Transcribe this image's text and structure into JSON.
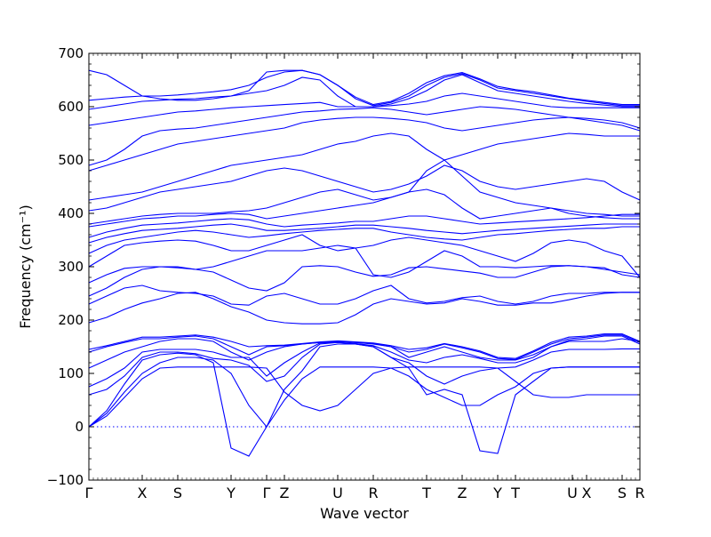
{
  "chart_data": {
    "type": "line",
    "title": "",
    "xlabel": "Wave vector",
    "ylabel": "Frequency (cm⁻¹)",
    "ylim": [
      -100,
      700
    ],
    "yticks": [
      -100,
      0,
      100,
      200,
      300,
      400,
      500,
      600,
      700
    ],
    "xlim": [
      0,
      31
    ],
    "xticks": [
      {
        "label": "Γ",
        "x": 0
      },
      {
        "label": "X",
        "x": 3
      },
      {
        "label": "S",
        "x": 5
      },
      {
        "label": "Y",
        "x": 8
      },
      {
        "label": "Γ",
        "x": 10
      },
      {
        "label": "Z",
        "x": 11
      },
      {
        "label": "U",
        "x": 14
      },
      {
        "label": "R",
        "x": 16
      },
      {
        "label": "T",
        "x": 19
      },
      {
        "label": "Z",
        "x": 21
      },
      {
        "label": "Y",
        "x": 23
      },
      {
        "label": "T",
        "x": 24
      },
      {
        "label": "U",
        "x": 27.2
      },
      {
        "label": "X",
        "x": 28
      },
      {
        "label": "S",
        "x": 30
      },
      {
        "label": "R",
        "x": 31
      }
    ],
    "zero_line": 0,
    "line_color": "#0000ff",
    "zero_line_color": "#0000ff",
    "grid": false,
    "series_note": "phonon branches",
    "bands": [
      [
        0,
        20,
        55,
        90,
        110,
        112,
        112,
        112,
        112,
        112,
        110,
        65,
        40,
        30,
        40,
        70,
        100,
        110,
        112,
        112,
        112,
        112,
        112,
        110,
        85,
        60,
        55,
        55,
        60,
        60,
        60,
        60
      ],
      [
        0,
        25,
        65,
        100,
        120,
        130,
        130,
        125,
        100,
        40,
        0,
        50,
        90,
        112,
        112,
        112,
        112,
        110,
        95,
        70,
        55,
        40,
        40,
        60,
        75,
        100,
        110,
        112,
        112,
        112,
        112,
        112
      ],
      [
        0,
        30,
        80,
        125,
        135,
        138,
        135,
        120,
        -40,
        -55,
        0,
        70,
        105,
        150,
        155,
        155,
        150,
        130,
        110,
        60,
        70,
        60,
        -45,
        -50,
        60,
        85,
        110,
        112,
        112,
        112,
        112,
        112
      ],
      [
        60,
        70,
        95,
        130,
        140,
        140,
        137,
        128,
        125,
        115,
        85,
        95,
        130,
        155,
        158,
        155,
        150,
        130,
        120,
        95,
        80,
        95,
        105,
        110,
        112,
        125,
        140,
        145,
        145,
        145,
        146,
        146
      ],
      [
        75,
        90,
        110,
        140,
        145,
        145,
        145,
        140,
        130,
        130,
        95,
        120,
        140,
        157,
        158,
        156,
        152,
        140,
        125,
        120,
        130,
        135,
        128,
        120,
        120,
        130,
        150,
        160,
        160,
        160,
        165,
        160
      ],
      [
        110,
        125,
        140,
        150,
        160,
        165,
        165,
        160,
        140,
        125,
        140,
        150,
        155,
        158,
        160,
        158,
        155,
        150,
        130,
        140,
        150,
        140,
        130,
        125,
        125,
        135,
        150,
        162,
        165,
        170,
        170,
        155
      ],
      [
        140,
        150,
        158,
        165,
        165,
        168,
        170,
        165,
        150,
        135,
        150,
        152,
        155,
        158,
        160,
        158,
        156,
        150,
        140,
        145,
        155,
        148,
        140,
        128,
        126,
        140,
        155,
        165,
        168,
        172,
        172,
        158
      ],
      [
        145,
        152,
        160,
        168,
        168,
        170,
        172,
        168,
        160,
        150,
        152,
        153,
        156,
        159,
        161,
        159,
        157,
        152,
        145,
        148,
        156,
        150,
        142,
        130,
        128,
        142,
        158,
        168,
        170,
        174,
        174,
        160
      ],
      [
        195,
        205,
        220,
        232,
        240,
        250,
        252,
        240,
        225,
        215,
        200,
        195,
        193,
        193,
        195,
        210,
        230,
        240,
        235,
        230,
        232,
        240,
        235,
        228,
        228,
        232,
        232,
        238,
        245,
        250,
        252,
        252
      ],
      [
        230,
        245,
        260,
        265,
        255,
        252,
        250,
        245,
        230,
        228,
        245,
        250,
        240,
        230,
        230,
        240,
        255,
        265,
        240,
        232,
        235,
        242,
        245,
        235,
        230,
        235,
        245,
        250,
        250,
        252,
        252,
        252
      ],
      [
        245,
        260,
        280,
        295,
        300,
        298,
        295,
        290,
        275,
        260,
        255,
        270,
        300,
        302,
        300,
        290,
        282,
        285,
        298,
        300,
        296,
        292,
        288,
        280,
        280,
        290,
        300,
        302,
        300,
        295,
        290,
        285
      ],
      [
        270,
        285,
        297,
        300,
        300,
        300,
        295,
        300,
        310,
        320,
        330,
        330,
        330,
        335,
        340,
        335,
        285,
        280,
        290,
        310,
        330,
        320,
        300,
        300,
        298,
        300,
        302,
        302,
        300,
        298,
        285,
        280
      ],
      [
        300,
        320,
        340,
        345,
        348,
        350,
        348,
        340,
        330,
        330,
        340,
        350,
        360,
        340,
        330,
        335,
        340,
        350,
        355,
        350,
        345,
        340,
        330,
        320,
        310,
        325,
        345,
        350,
        345,
        330,
        320,
        280
      ],
      [
        325,
        340,
        350,
        355,
        360,
        365,
        368,
        365,
        360,
        355,
        358,
        362,
        365,
        368,
        370,
        372,
        372,
        365,
        360,
        355,
        352,
        350,
        355,
        360,
        362,
        365,
        368,
        370,
        372,
        372,
        375,
        375
      ],
      [
        345,
        355,
        362,
        368,
        370,
        372,
        375,
        378,
        380,
        375,
        368,
        368,
        370,
        372,
        375,
        378,
        378,
        375,
        372,
        368,
        365,
        362,
        365,
        368,
        370,
        372,
        374,
        376,
        378,
        380,
        380,
        380
      ],
      [
        355,
        365,
        372,
        378,
        380,
        382,
        385,
        388,
        390,
        388,
        380,
        375,
        378,
        380,
        382,
        385,
        385,
        390,
        395,
        395,
        390,
        385,
        380,
        382,
        384,
        386,
        388,
        390,
        392,
        395,
        398,
        398
      ],
      [
        375,
        380,
        385,
        390,
        392,
        395,
        395,
        398,
        400,
        398,
        390,
        395,
        400,
        405,
        410,
        415,
        420,
        430,
        440,
        445,
        435,
        410,
        390,
        395,
        400,
        405,
        410,
        400,
        395,
        392,
        390,
        390
      ],
      [
        380,
        385,
        390,
        395,
        398,
        400,
        400,
        400,
        403,
        405,
        410,
        420,
        430,
        440,
        445,
        435,
        425,
        430,
        440,
        480,
        500,
        470,
        440,
        430,
        420,
        415,
        410,
        405,
        400,
        398,
        395,
        395
      ],
      [
        405,
        410,
        420,
        430,
        440,
        445,
        450,
        455,
        460,
        470,
        480,
        485,
        480,
        470,
        460,
        450,
        440,
        445,
        455,
        470,
        490,
        480,
        460,
        450,
        445,
        450,
        455,
        460,
        465,
        460,
        440,
        425
      ],
      [
        425,
        430,
        435,
        440,
        450,
        460,
        470,
        480,
        490,
        495,
        500,
        505,
        510,
        520,
        530,
        535,
        545,
        550,
        545,
        520,
        500,
        510,
        520,
        530,
        535,
        540,
        545,
        550,
        548,
        545,
        545,
        545
      ],
      [
        480,
        490,
        500,
        510,
        520,
        530,
        535,
        540,
        545,
        550,
        555,
        560,
        570,
        575,
        578,
        580,
        580,
        578,
        575,
        570,
        560,
        555,
        560,
        565,
        570,
        575,
        578,
        580,
        578,
        575,
        570,
        560
      ],
      [
        490,
        500,
        520,
        545,
        555,
        558,
        560,
        565,
        570,
        575,
        580,
        585,
        590,
        592,
        595,
        596,
        598,
        595,
        590,
        585,
        590,
        595,
        600,
        598,
        595,
        590,
        585,
        580,
        575,
        570,
        565,
        555
      ],
      [
        565,
        570,
        575,
        580,
        585,
        590,
        592,
        595,
        598,
        600,
        602,
        604,
        606,
        608,
        600,
        600,
        600,
        602,
        605,
        610,
        620,
        625,
        620,
        615,
        610,
        605,
        600,
        598,
        598,
        598,
        598,
        598
      ],
      [
        595,
        600,
        605,
        610,
        612,
        614,
        615,
        618,
        620,
        625,
        630,
        640,
        655,
        650,
        620,
        600,
        600,
        605,
        615,
        630,
        650,
        660,
        645,
        630,
        625,
        620,
        615,
        610,
        606,
        603,
        600,
        600
      ],
      [
        612,
        615,
        618,
        620,
        620,
        622,
        625,
        628,
        632,
        640,
        655,
        665,
        668,
        660,
        640,
        615,
        602,
        608,
        620,
        640,
        655,
        662,
        650,
        635,
        630,
        625,
        620,
        615,
        610,
        606,
        602,
        602
      ],
      [
        668,
        660,
        640,
        620,
        615,
        612,
        612,
        615,
        620,
        630,
        665,
        668,
        668,
        660,
        640,
        618,
        604,
        610,
        625,
        645,
        658,
        664,
        652,
        638,
        632,
        628,
        622,
        616,
        612,
        608,
        604,
        604
      ]
    ]
  }
}
